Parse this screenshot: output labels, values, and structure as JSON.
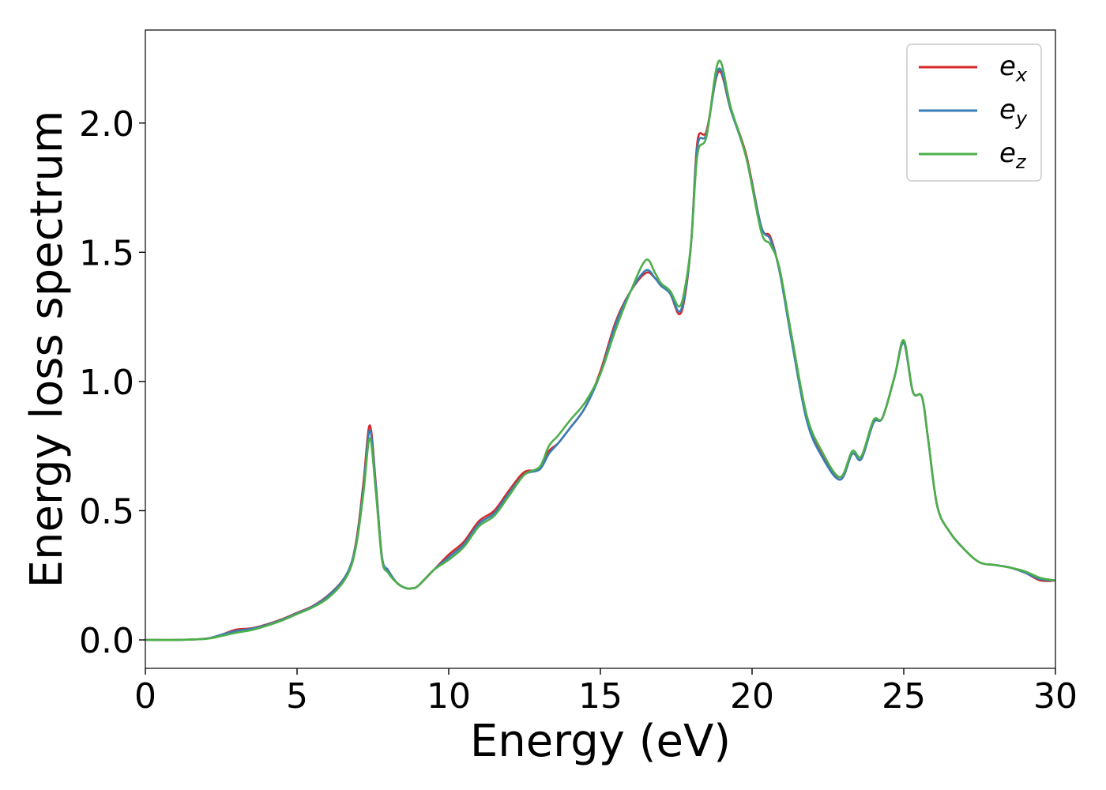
{
  "chart_data": {
    "type": "line",
    "title": "",
    "xlabel": "Energy (eV)",
    "ylabel": "Energy loss spectrum",
    "xlim": [
      0,
      30
    ],
    "ylim": [
      -0.11,
      2.36
    ],
    "xticks": [
      0,
      5,
      10,
      15,
      20,
      25,
      30
    ],
    "xtick_labels": [
      "0",
      "5",
      "10",
      "15",
      "20",
      "25",
      "30"
    ],
    "yticks": [
      0.0,
      0.5,
      1.0,
      1.5,
      2.0
    ],
    "ytick_labels": [
      "0.0",
      "0.5",
      "1.0",
      "1.5",
      "2.0"
    ],
    "grid": false,
    "legend_position": "top-right",
    "series": [
      {
        "name": "e_x",
        "legend_base": "e",
        "legend_sub": "x",
        "color": "#d62728",
        "x": [
          0,
          1,
          2,
          2.5,
          3,
          3.5,
          4,
          4.5,
          5,
          5.5,
          6,
          6.5,
          6.8,
          7.0,
          7.2,
          7.4,
          7.6,
          7.8,
          8.0,
          8.3,
          8.6,
          8.8,
          9.0,
          9.5,
          10,
          10.5,
          11,
          11.5,
          12,
          12.5,
          13,
          13.3,
          13.6,
          14,
          14.5,
          15,
          15.5,
          16,
          16.5,
          16.8,
          17.0,
          17.3,
          17.6,
          17.8,
          18.0,
          18.2,
          18.5,
          18.9,
          19.3,
          19.8,
          20.3,
          20.6,
          20.9,
          21.3,
          21.8,
          22.3,
          22.9,
          23.3,
          23.6,
          24.0,
          24.3,
          24.7,
          25.0,
          25.3,
          25.6,
          25.8,
          26.1,
          26.5,
          27.0,
          27.5,
          28.0,
          28.5,
          29.0,
          29.5,
          30.0
        ],
        "values": [
          0,
          0,
          0.005,
          0.02,
          0.04,
          0.045,
          0.06,
          0.08,
          0.105,
          0.13,
          0.17,
          0.23,
          0.3,
          0.42,
          0.62,
          0.83,
          0.6,
          0.32,
          0.27,
          0.22,
          0.2,
          0.2,
          0.21,
          0.27,
          0.33,
          0.38,
          0.46,
          0.5,
          0.58,
          0.65,
          0.66,
          0.73,
          0.76,
          0.82,
          0.9,
          1.04,
          1.23,
          1.35,
          1.42,
          1.4,
          1.37,
          1.34,
          1.26,
          1.34,
          1.55,
          1.93,
          1.97,
          2.2,
          2.05,
          1.88,
          1.6,
          1.56,
          1.43,
          1.17,
          0.86,
          0.72,
          0.62,
          0.72,
          0.7,
          0.84,
          0.86,
          1.02,
          1.15,
          0.96,
          0.94,
          0.78,
          0.52,
          0.42,
          0.35,
          0.3,
          0.29,
          0.28,
          0.26,
          0.23,
          0.23
        ]
      },
      {
        "name": "e_y",
        "legend_base": "e",
        "legend_sub": "y",
        "color": "#377eb8",
        "x": [
          0,
          1,
          2,
          2.5,
          3,
          3.5,
          4,
          4.5,
          5,
          5.5,
          6,
          6.5,
          6.8,
          7.0,
          7.2,
          7.4,
          7.6,
          7.8,
          8.0,
          8.3,
          8.6,
          8.8,
          9.0,
          9.5,
          10,
          10.5,
          11,
          11.5,
          12,
          12.5,
          13,
          13.3,
          13.6,
          14,
          14.5,
          15,
          15.5,
          16,
          16.5,
          16.8,
          17.0,
          17.3,
          17.6,
          17.8,
          18.0,
          18.2,
          18.5,
          18.9,
          19.3,
          19.8,
          20.3,
          20.6,
          20.9,
          21.3,
          21.8,
          22.3,
          22.9,
          23.3,
          23.6,
          24.0,
          24.3,
          24.7,
          25.0,
          25.3,
          25.6,
          25.8,
          26.1,
          26.5,
          27.0,
          27.5,
          28.0,
          28.5,
          29.0,
          29.5,
          30.0
        ],
        "values": [
          0,
          0,
          0.005,
          0.02,
          0.035,
          0.043,
          0.058,
          0.078,
          0.103,
          0.128,
          0.168,
          0.228,
          0.3,
          0.41,
          0.6,
          0.81,
          0.59,
          0.32,
          0.27,
          0.22,
          0.2,
          0.2,
          0.21,
          0.27,
          0.32,
          0.37,
          0.45,
          0.49,
          0.57,
          0.64,
          0.66,
          0.72,
          0.76,
          0.82,
          0.9,
          1.03,
          1.22,
          1.35,
          1.43,
          1.4,
          1.37,
          1.34,
          1.27,
          1.35,
          1.55,
          1.91,
          1.96,
          2.21,
          2.05,
          1.87,
          1.6,
          1.55,
          1.43,
          1.16,
          0.85,
          0.71,
          0.62,
          0.72,
          0.7,
          0.84,
          0.86,
          1.02,
          1.15,
          0.96,
          0.94,
          0.78,
          0.52,
          0.42,
          0.35,
          0.3,
          0.29,
          0.28,
          0.26,
          0.235,
          0.23
        ]
      },
      {
        "name": "e_z",
        "legend_base": "e",
        "legend_sub": "z",
        "color": "#4daf4a",
        "x": [
          0,
          1,
          2,
          2.5,
          3,
          3.5,
          4,
          4.5,
          5,
          5.5,
          6,
          6.5,
          6.8,
          7.0,
          7.2,
          7.4,
          7.6,
          7.8,
          8.0,
          8.3,
          8.6,
          8.8,
          9.0,
          9.5,
          10,
          10.5,
          11,
          11.5,
          12,
          12.5,
          13,
          13.3,
          13.6,
          14,
          14.5,
          15,
          15.5,
          16,
          16.5,
          16.8,
          17.0,
          17.3,
          17.6,
          17.8,
          18.0,
          18.2,
          18.5,
          18.9,
          19.3,
          19.8,
          20.3,
          20.6,
          20.9,
          21.3,
          21.8,
          22.3,
          22.9,
          23.3,
          23.6,
          24.0,
          24.3,
          24.7,
          25.0,
          25.3,
          25.6,
          25.8,
          26.1,
          26.5,
          27.0,
          27.5,
          28.0,
          28.5,
          29.0,
          29.5,
          30.0
        ],
        "values": [
          0,
          0,
          0.004,
          0.015,
          0.028,
          0.038,
          0.055,
          0.075,
          0.1,
          0.125,
          0.16,
          0.22,
          0.29,
          0.4,
          0.58,
          0.78,
          0.57,
          0.31,
          0.26,
          0.22,
          0.2,
          0.2,
          0.21,
          0.27,
          0.31,
          0.36,
          0.44,
          0.48,
          0.56,
          0.64,
          0.67,
          0.75,
          0.79,
          0.85,
          0.92,
          1.03,
          1.2,
          1.35,
          1.47,
          1.42,
          1.38,
          1.35,
          1.29,
          1.37,
          1.55,
          1.88,
          1.95,
          2.24,
          2.06,
          1.87,
          1.58,
          1.53,
          1.44,
          1.18,
          0.87,
          0.73,
          0.63,
          0.73,
          0.71,
          0.85,
          0.86,
          1.02,
          1.16,
          0.96,
          0.94,
          0.78,
          0.52,
          0.42,
          0.35,
          0.3,
          0.29,
          0.28,
          0.265,
          0.24,
          0.23
        ]
      }
    ]
  }
}
